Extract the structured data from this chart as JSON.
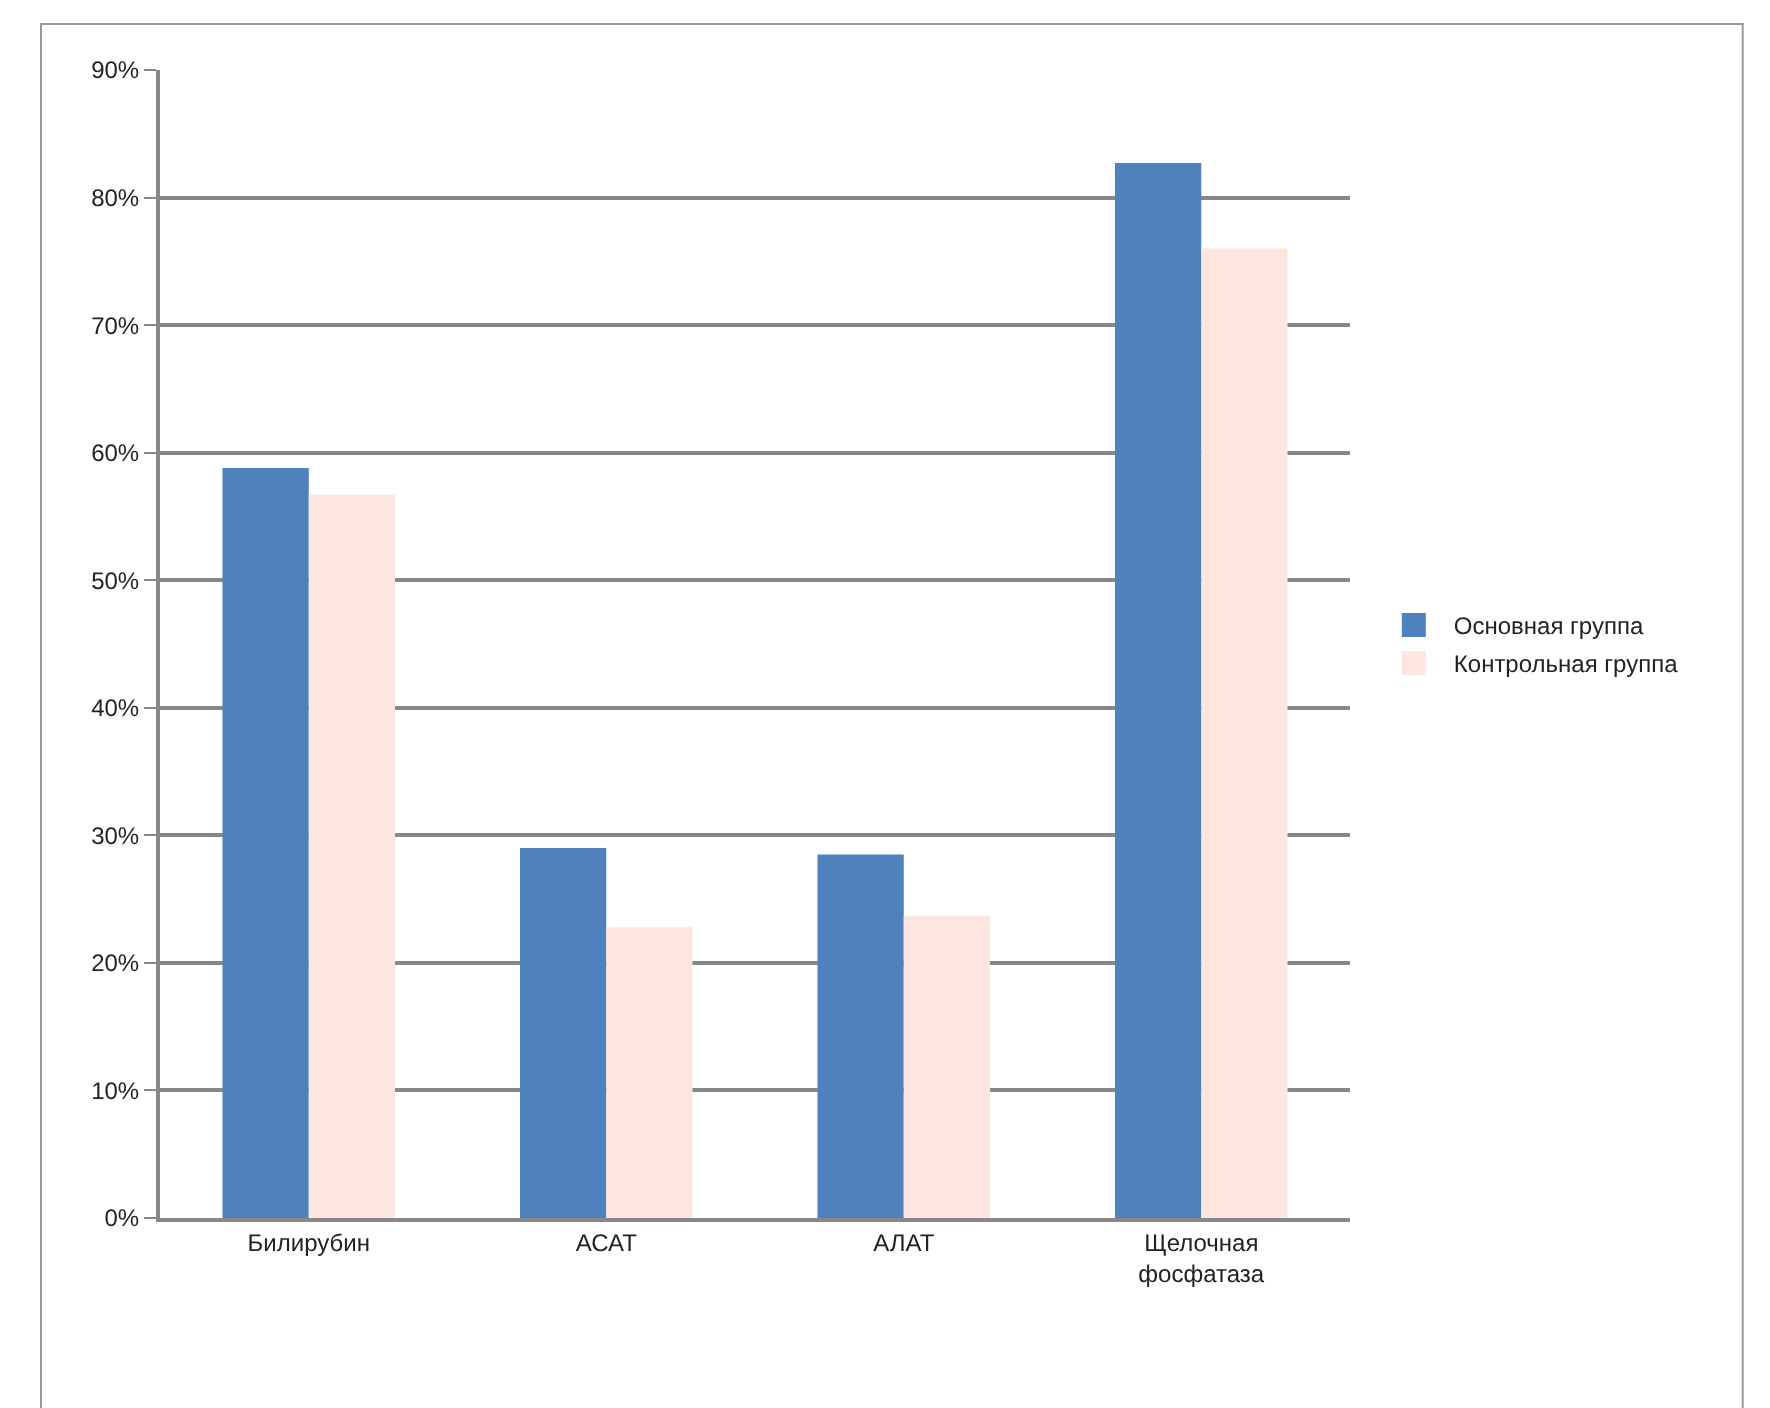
{
  "chart_data": {
    "type": "bar",
    "categories": [
      "Билирубин",
      "АСАТ",
      "АЛАТ",
      "Щелочная фосфатаза"
    ],
    "series": [
      {
        "name": "Основная группа",
        "color": "#4f81bd",
        "values": [
          58.8,
          29,
          28.5,
          82.7
        ]
      },
      {
        "name": "Контрольная группа",
        "color": "#fde5e0",
        "values": [
          56.7,
          22.8,
          23.7,
          76
        ]
      }
    ],
    "ylim": [
      0,
      90
    ],
    "yticks": [
      {
        "value": 0,
        "label": "0%"
      },
      {
        "value": 10,
        "label": "10%"
      },
      {
        "value": 20,
        "label": "20%"
      },
      {
        "value": 30,
        "label": "30%"
      },
      {
        "value": 40,
        "label": "40%"
      },
      {
        "value": 50,
        "label": "50%"
      },
      {
        "value": 60,
        "label": "60%"
      },
      {
        "value": 70,
        "label": "70%"
      },
      {
        "value": 80,
        "label": "80%"
      },
      {
        "value": 90,
        "label": "90%"
      }
    ],
    "grid": "y",
    "legend": "right"
  }
}
